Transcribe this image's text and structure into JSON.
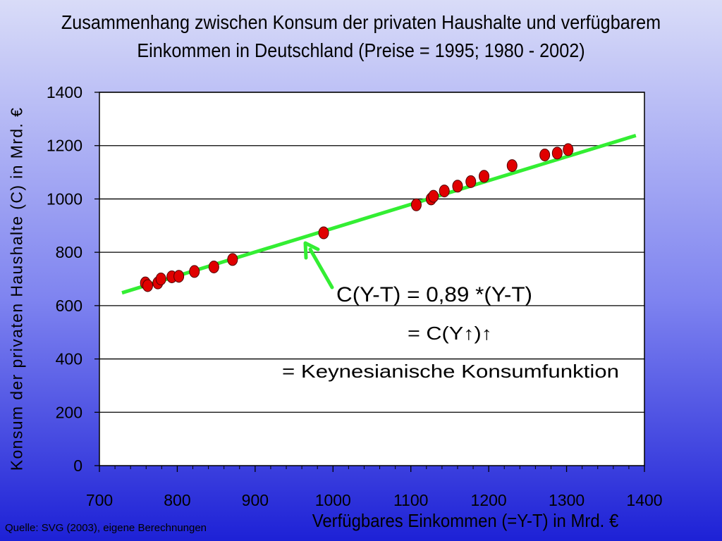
{
  "chart_data": {
    "type": "scatter",
    "title_lines": [
      "Zusammenhang zwischen Konsum der privaten Haushalte und verfügbarem",
      "Einkommen in Deutschland (Preise = 1995; 1980 - 2002)"
    ],
    "xlabel": "Verfügbares Einkommen (=Y-T) in Mrd. €",
    "ylabel": "Konsum der privaten Haushalte (C) in Mrd. €",
    "xlim": [
      700,
      1400
    ],
    "ylim": [
      0,
      1400
    ],
    "x_ticks": [
      "700",
      "800",
      "900",
      "1000",
      "1100",
      "1200",
      "1300",
      "1400"
    ],
    "y_ticks": [
      "0",
      "200",
      "400",
      "600",
      "800",
      "1000",
      "1200",
      "1400"
    ],
    "grid": "horizontal",
    "series": [
      {
        "kind": "points",
        "color": "#e00000",
        "points": [
          {
            "x": 759,
            "y": 685
          },
          {
            "x": 762,
            "y": 675
          },
          {
            "x": 775,
            "y": 685
          },
          {
            "x": 779,
            "y": 700
          },
          {
            "x": 793,
            "y": 708
          },
          {
            "x": 802,
            "y": 710
          },
          {
            "x": 822,
            "y": 728
          },
          {
            "x": 847,
            "y": 745
          },
          {
            "x": 871,
            "y": 773
          },
          {
            "x": 988,
            "y": 873
          },
          {
            "x": 1107,
            "y": 978
          },
          {
            "x": 1126,
            "y": 1000
          },
          {
            "x": 1129,
            "y": 1010
          },
          {
            "x": 1143,
            "y": 1030
          },
          {
            "x": 1160,
            "y": 1048
          },
          {
            "x": 1177,
            "y": 1065
          },
          {
            "x": 1194,
            "y": 1085
          },
          {
            "x": 1230,
            "y": 1125
          },
          {
            "x": 1272,
            "y": 1165
          },
          {
            "x": 1288,
            "y": 1172
          },
          {
            "x": 1302,
            "y": 1185
          }
        ]
      },
      {
        "kind": "line",
        "color": "#33ee33",
        "points": [
          {
            "x": 729,
            "y": 648
          },
          {
            "x": 1389,
            "y": 1238
          }
        ]
      }
    ],
    "annotations": [
      {
        "id": "eq",
        "text": "C(Y-T) = 0,89 *(Y-T)"
      },
      {
        "id": "l1",
        "text": "= C(Y↑)↑"
      },
      {
        "id": "l2",
        "text": "= Keynesianische Konsumfunktion"
      }
    ]
  },
  "source": "Quelle: SVG (2003), eigene Berechnungen"
}
